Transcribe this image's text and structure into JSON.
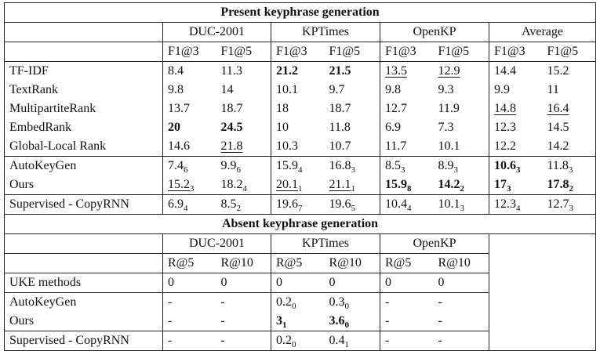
{
  "present": {
    "title": "Present keyphrase generation",
    "datasets": [
      "DUC-2001",
      "KPTimes",
      "OpenKP",
      "Average"
    ],
    "metrics": [
      "F1@3",
      "F1@5"
    ],
    "rows": [
      {
        "method": "TF-IDF",
        "cells": [
          {
            "v": "8.4"
          },
          {
            "v": "11.3"
          },
          {
            "v": "21.2",
            "bold": true
          },
          {
            "v": "21.5",
            "bold": true
          },
          {
            "v": "13.5",
            "underline": true
          },
          {
            "v": "12.9",
            "underline": true
          },
          {
            "v": "14.4"
          },
          {
            "v": "15.2"
          }
        ]
      },
      {
        "method": "TextRank",
        "cells": [
          {
            "v": "9.8"
          },
          {
            "v": "14"
          },
          {
            "v": "10.1"
          },
          {
            "v": "9.7"
          },
          {
            "v": "9.8"
          },
          {
            "v": "9.3"
          },
          {
            "v": "9.9"
          },
          {
            "v": "11"
          }
        ]
      },
      {
        "method": "MultipartiteRank",
        "cells": [
          {
            "v": "13.7"
          },
          {
            "v": "18.7"
          },
          {
            "v": "18"
          },
          {
            "v": "18.7"
          },
          {
            "v": "12.7"
          },
          {
            "v": "11.9"
          },
          {
            "v": "14.8",
            "underline": true
          },
          {
            "v": "16.4",
            "underline": true
          }
        ]
      },
      {
        "method": "EmbedRank",
        "cells": [
          {
            "v": "20",
            "bold": true
          },
          {
            "v": "24.5",
            "bold": true
          },
          {
            "v": "10"
          },
          {
            "v": "11.8"
          },
          {
            "v": "6.9"
          },
          {
            "v": "7.3"
          },
          {
            "v": "12.3"
          },
          {
            "v": "14.5"
          }
        ]
      },
      {
        "method": "Global-Local Rank",
        "cells": [
          {
            "v": "14.6"
          },
          {
            "v": "21.8",
            "underline": true
          },
          {
            "v": "10.3"
          },
          {
            "v": "10.7"
          },
          {
            "v": "11.7"
          },
          {
            "v": "10.1"
          },
          {
            "v": "12.2"
          },
          {
            "v": "14.2"
          }
        ]
      },
      {
        "method": "AutoKeyGen",
        "sep": true,
        "cells": [
          {
            "v": "7.4",
            "s": "6"
          },
          {
            "v": "9.9",
            "s": "6"
          },
          {
            "v": "15.9",
            "s": "4"
          },
          {
            "v": "16.8",
            "s": "3"
          },
          {
            "v": "8.5",
            "s": "3"
          },
          {
            "v": "8.9",
            "s": "3"
          },
          {
            "v": "10.6",
            "s": "3",
            "bold": true
          },
          {
            "v": "11.8",
            "s": "3"
          }
        ]
      },
      {
        "method": "Ours",
        "bold": true,
        "cells": [
          {
            "v": "15.2",
            "s": "3",
            "underline": true
          },
          {
            "v": "18.2",
            "s": "4"
          },
          {
            "v": "20.1",
            "s": "1",
            "underline": true
          },
          {
            "v": "21.1",
            "s": "1",
            "underline": true
          },
          {
            "v": "15.9",
            "s": "8",
            "bold": true
          },
          {
            "v": "14.2",
            "s": "2",
            "bold": true
          },
          {
            "v": "17",
            "s": "3",
            "bold": true
          },
          {
            "v": "17.8",
            "s": "2",
            "bold": true
          }
        ]
      },
      {
        "method": "Supervised - CopyRNN",
        "sep": true,
        "cells": [
          {
            "v": "6.9",
            "s": "4"
          },
          {
            "v": "8.5",
            "s": "2"
          },
          {
            "v": "19.6",
            "s": "7"
          },
          {
            "v": "19.6",
            "s": "5"
          },
          {
            "v": "10.4",
            "s": "4"
          },
          {
            "v": "10.1",
            "s": "3"
          },
          {
            "v": "12.3",
            "s": "4"
          },
          {
            "v": "12.7",
            "s": "3"
          }
        ]
      }
    ]
  },
  "absent": {
    "title": "Absent keyphrase generation",
    "datasets": [
      "DUC-2001",
      "KPTimes",
      "OpenKP"
    ],
    "metrics": [
      "R@5",
      "R@10"
    ],
    "rows": [
      {
        "method": "UKE methods",
        "cells": [
          {
            "v": "0"
          },
          {
            "v": "0"
          },
          {
            "v": "0"
          },
          {
            "v": "0"
          },
          {
            "v": "0"
          },
          {
            "v": "0"
          }
        ]
      },
      {
        "method": "AutoKeyGen",
        "sep": true,
        "cells": [
          {
            "v": "-"
          },
          {
            "v": "-"
          },
          {
            "v": "0.2",
            "s": "0"
          },
          {
            "v": "0.3",
            "s": "0"
          },
          {
            "v": "-"
          },
          {
            "v": "-"
          }
        ]
      },
      {
        "method": "Ours",
        "bold": true,
        "cells": [
          {
            "v": "-"
          },
          {
            "v": "-"
          },
          {
            "v": "3",
            "s": "1",
            "bold": true
          },
          {
            "v": "3.6",
            "s": "0",
            "bold": true
          },
          {
            "v": "-"
          },
          {
            "v": "-"
          }
        ]
      },
      {
        "method": "Supervised - CopyRNN",
        "sep": true,
        "cells": [
          {
            "v": "-"
          },
          {
            "v": "-"
          },
          {
            "v": "0.2",
            "s": "0"
          },
          {
            "v": "0.4",
            "s": "1"
          },
          {
            "v": "-"
          },
          {
            "v": "-"
          }
        ]
      }
    ]
  }
}
